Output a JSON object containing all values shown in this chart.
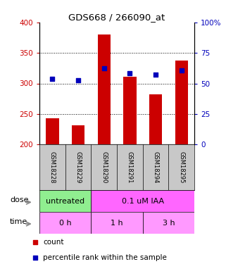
{
  "title": "GDS668 / 266090_at",
  "samples": [
    "GSM18228",
    "GSM18229",
    "GSM18290",
    "GSM18291",
    "GSM18294",
    "GSM18295"
  ],
  "bar_values": [
    243,
    231,
    381,
    311,
    282,
    338
  ],
  "bar_bottom": 200,
  "blue_values": [
    308,
    305,
    325,
    317,
    315,
    322
  ],
  "bar_color": "#cc0000",
  "blue_color": "#0000bb",
  "ylim_left": [
    200,
    400
  ],
  "ylim_right": [
    0,
    100
  ],
  "yticks_left": [
    200,
    250,
    300,
    350,
    400
  ],
  "yticks_right": [
    0,
    25,
    50,
    75,
    100
  ],
  "ytick_labels_left": [
    "200",
    "250",
    "300",
    "350",
    "400"
  ],
  "ytick_labels_right": [
    "0",
    "25",
    "50",
    "75",
    "100%"
  ],
  "dose_groups": [
    {
      "label": "untreated",
      "start": 0,
      "end": 2,
      "color": "#90ee90"
    },
    {
      "label": "0.1 uM IAA",
      "start": 2,
      "end": 6,
      "color": "#ff66ff"
    }
  ],
  "time_groups": [
    {
      "label": "0 h",
      "start": 0,
      "end": 2,
      "color": "#ff99ff"
    },
    {
      "label": "1 h",
      "start": 2,
      "end": 4,
      "color": "#ff99ff"
    },
    {
      "label": "3 h",
      "start": 4,
      "end": 6,
      "color": "#ff99ff"
    }
  ],
  "dose_label": "dose",
  "time_label": "time",
  "legend_count": "count",
  "legend_percentile": "percentile rank within the sample",
  "tick_color_left": "#cc0000",
  "tick_color_right": "#0000bb",
  "bar_width": 0.5,
  "background_color": "#ffffff",
  "xtick_bg": "#c8c8c8",
  "label_fontsize": 8,
  "tick_fontsize": 7.5,
  "sample_fontsize": 6.0
}
